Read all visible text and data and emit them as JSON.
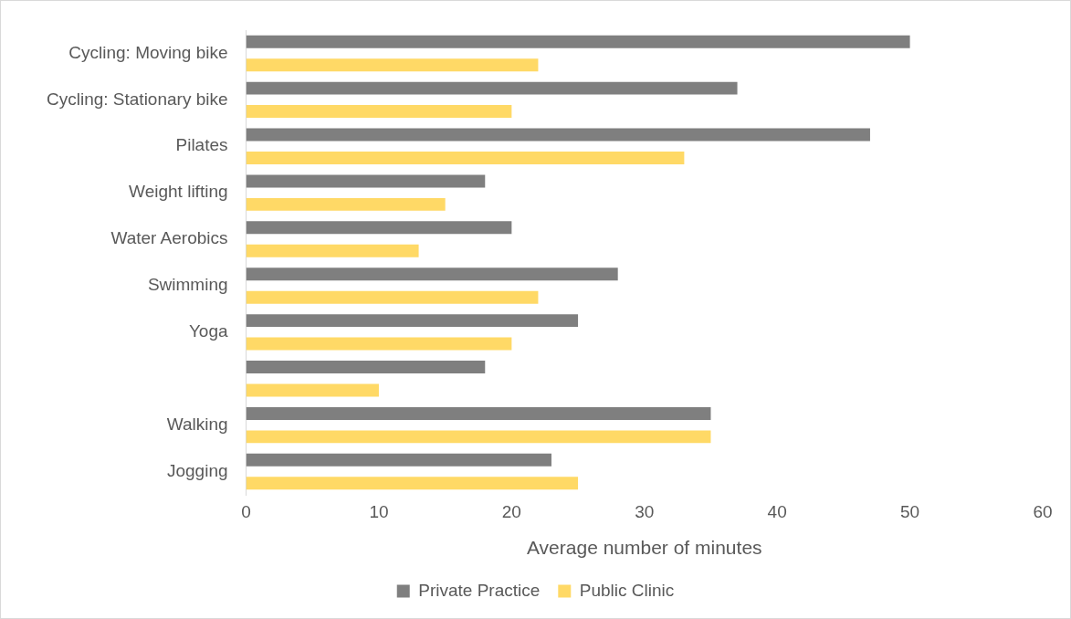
{
  "chart_data": {
    "type": "bar",
    "orientation": "horizontal",
    "xlabel": "Average number of minutes",
    "categories": [
      "Cycling: Moving bike",
      "Cycling: Stationary bike",
      "Pilates",
      "Weight lifting",
      "Water Aerobics",
      "Swimming",
      "Yoga",
      null,
      "Walking",
      "Jogging"
    ],
    "series": [
      {
        "name": "Private Practice",
        "color": "#7f7f7f",
        "values": [
          50,
          37,
          47,
          18,
          20,
          28,
          25,
          18,
          35,
          23
        ]
      },
      {
        "name": "Public Clinic",
        "color": "#ffd966",
        "values": [
          22,
          20,
          33,
          15,
          13,
          22,
          20,
          10,
          35,
          25
        ]
      }
    ],
    "xlim": [
      0,
      60
    ],
    "xticks": [
      0,
      10,
      20,
      30,
      40,
      50,
      60
    ],
    "grid": false,
    "legend": "bottom"
  }
}
